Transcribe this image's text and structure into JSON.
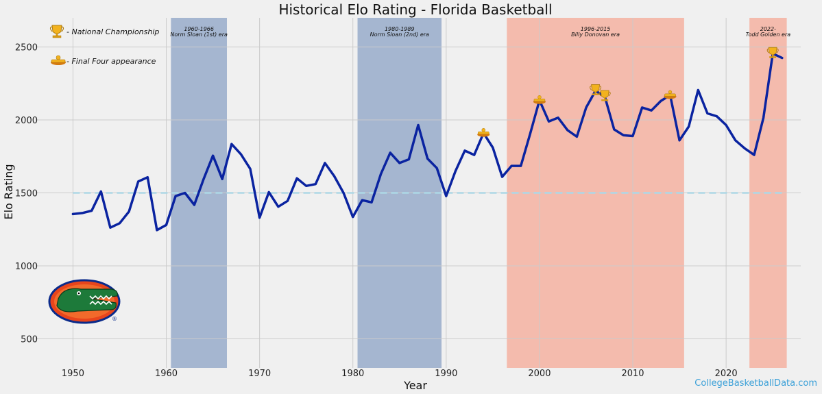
{
  "chart_data": {
    "type": "line",
    "title": "Historical Elo Rating - Florida Basketball",
    "xlabel": "Year",
    "ylabel": "Elo Rating",
    "xlim": [
      1946,
      2028
    ],
    "ylim": [
      300,
      2700
    ],
    "xticks": [
      1950,
      1960,
      1970,
      1980,
      1990,
      2000,
      2010,
      2020
    ],
    "yticks": [
      500,
      1000,
      1500,
      2000,
      2500
    ],
    "grid": true,
    "baseline": 1500,
    "series": [
      {
        "values": [
          {
            "x": 1950,
            "y": 1355
          },
          {
            "x": 1951,
            "y": 1362
          },
          {
            "x": 1952,
            "y": 1378
          },
          {
            "x": 1953,
            "y": 1510
          },
          {
            "x": 1954,
            "y": 1262
          },
          {
            "x": 1955,
            "y": 1292
          },
          {
            "x": 1956,
            "y": 1372
          },
          {
            "x": 1957,
            "y": 1578
          },
          {
            "x": 1958,
            "y": 1607
          },
          {
            "x": 1959,
            "y": 1245
          },
          {
            "x": 1960,
            "y": 1280
          },
          {
            "x": 1961,
            "y": 1478
          },
          {
            "x": 1962,
            "y": 1500
          },
          {
            "x": 1963,
            "y": 1418
          },
          {
            "x": 1964,
            "y": 1595
          },
          {
            "x": 1965,
            "y": 1755
          },
          {
            "x": 1966,
            "y": 1595
          },
          {
            "x": 1967,
            "y": 1835
          },
          {
            "x": 1968,
            "y": 1765
          },
          {
            "x": 1969,
            "y": 1665
          },
          {
            "x": 1970,
            "y": 1330
          },
          {
            "x": 1971,
            "y": 1505
          },
          {
            "x": 1972,
            "y": 1405
          },
          {
            "x": 1973,
            "y": 1445
          },
          {
            "x": 1974,
            "y": 1600
          },
          {
            "x": 1975,
            "y": 1548
          },
          {
            "x": 1976,
            "y": 1560
          },
          {
            "x": 1977,
            "y": 1705
          },
          {
            "x": 1978,
            "y": 1615
          },
          {
            "x": 1979,
            "y": 1500
          },
          {
            "x": 1980,
            "y": 1335
          },
          {
            "x": 1981,
            "y": 1450
          },
          {
            "x": 1982,
            "y": 1435
          },
          {
            "x": 1983,
            "y": 1630
          },
          {
            "x": 1984,
            "y": 1775
          },
          {
            "x": 1985,
            "y": 1705
          },
          {
            "x": 1986,
            "y": 1730
          },
          {
            "x": 1987,
            "y": 1965
          },
          {
            "x": 1988,
            "y": 1735
          },
          {
            "x": 1989,
            "y": 1670
          },
          {
            "x": 1990,
            "y": 1478
          },
          {
            "x": 1991,
            "y": 1650
          },
          {
            "x": 1992,
            "y": 1790
          },
          {
            "x": 1993,
            "y": 1760
          },
          {
            "x": 1994,
            "y": 1910
          },
          {
            "x": 1995,
            "y": 1810
          },
          {
            "x": 1996,
            "y": 1610
          },
          {
            "x": 1997,
            "y": 1685
          },
          {
            "x": 1998,
            "y": 1685
          },
          {
            "x": 1999,
            "y": 1905
          },
          {
            "x": 2000,
            "y": 2135
          },
          {
            "x": 2001,
            "y": 1990
          },
          {
            "x": 2002,
            "y": 2015
          },
          {
            "x": 2003,
            "y": 1930
          },
          {
            "x": 2004,
            "y": 1885
          },
          {
            "x": 2005,
            "y": 2085
          },
          {
            "x": 2006,
            "y": 2200
          },
          {
            "x": 2007,
            "y": 2160
          },
          {
            "x": 2008,
            "y": 1935
          },
          {
            "x": 2009,
            "y": 1895
          },
          {
            "x": 2010,
            "y": 1890
          },
          {
            "x": 2011,
            "y": 2085
          },
          {
            "x": 2012,
            "y": 2065
          },
          {
            "x": 2013,
            "y": 2130
          },
          {
            "x": 2014,
            "y": 2170
          },
          {
            "x": 2015,
            "y": 1860
          },
          {
            "x": 2016,
            "y": 1955
          },
          {
            "x": 2017,
            "y": 2205
          },
          {
            "x": 2018,
            "y": 2045
          },
          {
            "x": 2019,
            "y": 2025
          },
          {
            "x": 2020,
            "y": 1965
          },
          {
            "x": 2021,
            "y": 1860
          },
          {
            "x": 2022,
            "y": 1805
          },
          {
            "x": 2023,
            "y": 1760
          },
          {
            "x": 2024,
            "y": 2015
          },
          {
            "x": 2025,
            "y": 2455
          },
          {
            "x": 2026,
            "y": 2425
          }
        ],
        "color": "#0a23a0"
      }
    ],
    "eras": [
      {
        "start": 1960.5,
        "end": 1966.5,
        "line1": "1960-1966",
        "line2": "Norm Sloan (1st) era",
        "color": "#a5b6d0"
      },
      {
        "start": 1980.5,
        "end": 1989.5,
        "line1": "1980-1989",
        "line2": "Norm Sloan (2nd) era",
        "color": "#a5b6d0"
      },
      {
        "start": 1996.5,
        "end": 2015.5,
        "line1": "1996-2015",
        "line2": "Billy Donovan era",
        "color": "#f4bbad"
      },
      {
        "start": 2022.5,
        "end": 2026.5,
        "line1": "2022-",
        "line2": "Todd Golden era",
        "color": "#f4bbad"
      }
    ],
    "championships": [
      2006,
      2007,
      2025
    ],
    "final_fours": [
      1994,
      2000,
      2014
    ],
    "legend": {
      "position": "top-left",
      "championship_label": "- National Championship",
      "final_four_label": "- Final Four appearance"
    },
    "line_color": "#0a23a0",
    "baseline_color": "#add8e6"
  },
  "watermark": "CollegeBasketballData.com"
}
